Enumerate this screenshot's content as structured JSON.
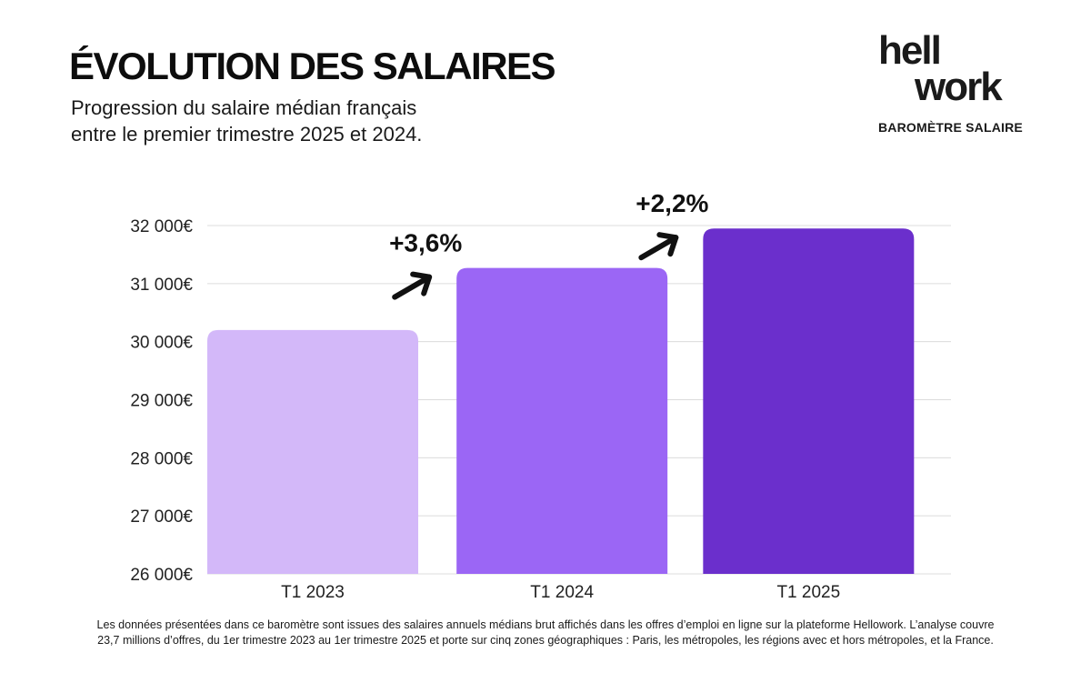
{
  "title": "ÉVOLUTION DES SALAIRES",
  "subtitle_line1": "Progression du salaire médian français",
  "subtitle_line2": "entre le premier trimestre 2025 et 2024.",
  "brand": {
    "logo_line1": "hell",
    "logo_line2": "work",
    "logo_text": "hellowork",
    "subtitle": "BAROMÈTRE SALAIRE",
    "color": "#1a1a1a",
    "accent": "#ff5a00"
  },
  "chart_data": {
    "type": "bar",
    "title": "",
    "xlabel": "",
    "ylabel": "",
    "categories": [
      "T1 2023",
      "T1 2024",
      "T1 2025"
    ],
    "values": [
      30200,
      31270,
      31950
    ],
    "colors": [
      "#d3b8f9",
      "#9b66f5",
      "#6b2fcc"
    ],
    "ylim": [
      26000,
      32000
    ],
    "yticks": [
      26000,
      27000,
      28000,
      29000,
      30000,
      31000,
      32000
    ],
    "ytick_labels": [
      "26 000€",
      "27 000€",
      "28 000€",
      "29 000€",
      "30 000€",
      "31 000€",
      "32 000€"
    ],
    "grid": true,
    "annotations": [
      {
        "text": "+3,6%",
        "between": [
          "T1 2023",
          "T1 2024"
        ]
      },
      {
        "text": "+2,2%",
        "between": [
          "T1 2024",
          "T1 2025"
        ]
      }
    ]
  },
  "footnote_line1": "Les données présentées dans ce baromètre sont issues des salaires annuels médians brut affichés dans les offres d’emploi en ligne sur la plateforme Hellowork. L’analyse couvre",
  "footnote_line2": "23,7 millions d’offres, du 1er trimestre 2023 au 1er trimestre 2025 et porte sur cinq zones géographiques : Paris, les métropoles, les régions avec et hors métropoles, et la France."
}
